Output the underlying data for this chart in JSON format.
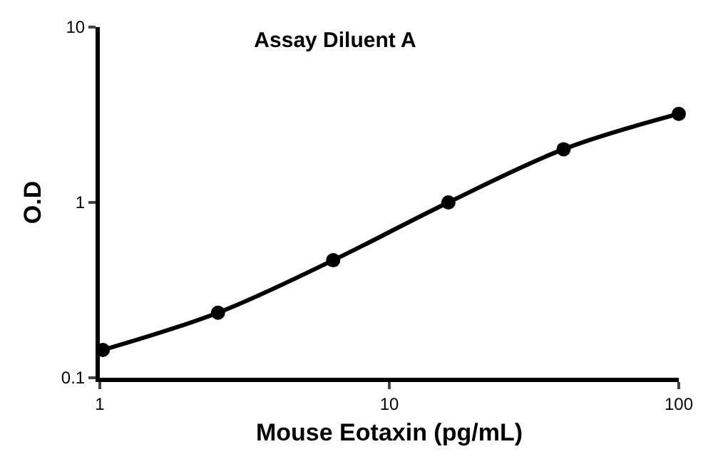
{
  "chart_data": {
    "type": "line",
    "title": "Assay Diluent A",
    "xlabel": "Mouse Eotaxin (pg/mL)",
    "ylabel": "O.D",
    "x": [
      1.024,
      2.56,
      6.4,
      16,
      40,
      100
    ],
    "series": [
      {
        "color": "#000000",
        "values": [
          0.144,
          0.235,
          0.468,
          1.0,
          2.01,
          3.2
        ]
      }
    ],
    "log": "xy",
    "xlim": [
      1,
      100
    ],
    "ylim": [
      0.1,
      10
    ],
    "xticks": [
      1,
      10,
      100
    ],
    "yticks": [
      0.1,
      1,
      10
    ],
    "marker": "circle",
    "line_style": "solid"
  }
}
